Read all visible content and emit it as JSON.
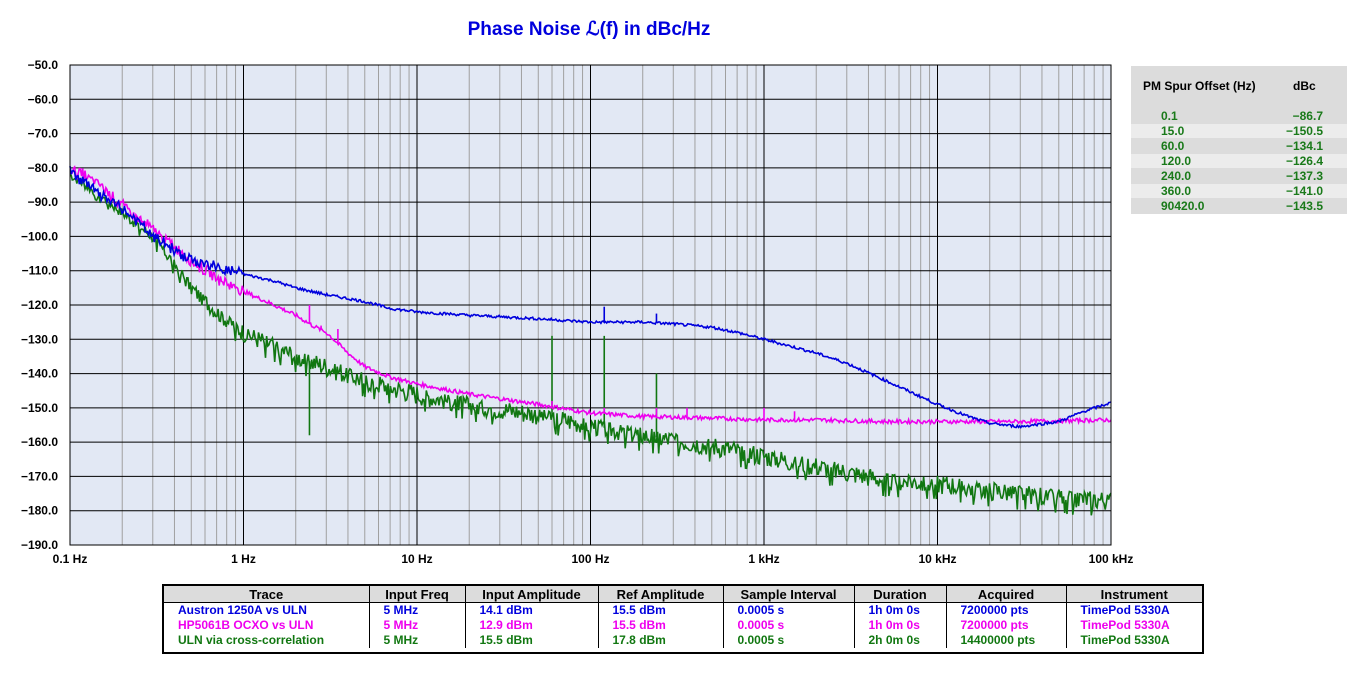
{
  "chart_data": {
    "type": "line",
    "title": "Phase Noise ℒ(f) in dBc/Hz",
    "x_scale": "log",
    "xlim": [
      0.1,
      100000
    ],
    "ylim": [
      -190,
      -50
    ],
    "grid": true,
    "x_ticks": [
      "0.1 Hz",
      "1 Hz",
      "10 Hz",
      "100 Hz",
      "1 kHz",
      "10 kHz",
      "100 kHz"
    ],
    "y_ticks": [
      "−50.0",
      "−60.0",
      "−70.0",
      "−80.0",
      "−90.0",
      "−100.0",
      "−110.0",
      "−120.0",
      "−130.0",
      "−140.0",
      "−150.0",
      "−160.0",
      "−170.0",
      "−180.0",
      "−190.0"
    ],
    "series": [
      {
        "name": "Austron 1250A vs ULN",
        "color": "#0000dd",
        "x": [
          0.1,
          0.12,
          0.15,
          0.2,
          0.25,
          0.3,
          0.4,
          0.5,
          0.7,
          1,
          1.5,
          2,
          3,
          5,
          7,
          10,
          20,
          50,
          100,
          200,
          300,
          500,
          700,
          1000,
          2000,
          3000,
          5000,
          10000,
          15000,
          20000,
          30000,
          50000,
          70000,
          100000
        ],
        "y": [
          -81,
          -84,
          -88,
          -92,
          -96,
          -100,
          -104,
          -107,
          -109,
          -111,
          -113,
          -115,
          -117,
          -119,
          -121,
          -122,
          -123,
          -124,
          -125,
          -125,
          -125.5,
          -126.5,
          -128,
          -130,
          -134,
          -137,
          -142,
          -149,
          -152.5,
          -154.5,
          -155.5,
          -154,
          -151,
          -148.5
        ],
        "spikes": [
          {
            "x": 120,
            "y": -120.5
          },
          {
            "x": 240,
            "y": -122.5
          }
        ]
      },
      {
        "name": "HP5061B OCXO vs ULN",
        "color": "#ee00ee",
        "x": [
          0.1,
          0.15,
          0.2,
          0.3,
          0.4,
          0.5,
          0.7,
          1,
          1.5,
          2,
          2.5,
          3,
          4,
          5,
          7,
          10,
          20,
          50,
          100,
          200,
          500,
          1000,
          2000,
          5000,
          10000,
          30000,
          100000
        ],
        "y": [
          -80,
          -85,
          -91,
          -98,
          -103,
          -107,
          -112,
          -116,
          -120,
          -123,
          -126,
          -128,
          -134,
          -138,
          -141,
          -143,
          -146,
          -149,
          -151.5,
          -152.5,
          -153,
          -153.5,
          -153.5,
          -154,
          -154,
          -154,
          -153.5
        ],
        "spikes": [
          {
            "x": 2.4,
            "y": -120
          },
          {
            "x": 2.8,
            "y": -126
          },
          {
            "x": 3.5,
            "y": -127
          },
          {
            "x": 60,
            "y": -148
          },
          {
            "x": 120,
            "y": -150
          },
          {
            "x": 240,
            "y": -150
          },
          {
            "x": 360,
            "y": -150
          },
          {
            "x": 1000,
            "y": -150
          },
          {
            "x": 1500,
            "y": -151
          }
        ]
      },
      {
        "name": "ULN via cross-correlation",
        "color": "#117711",
        "x": [
          0.1,
          0.15,
          0.2,
          0.3,
          0.4,
          0.5,
          0.7,
          1,
          1.5,
          2,
          3,
          5,
          7,
          10,
          20,
          50,
          100,
          200,
          500,
          1000,
          2000,
          5000,
          10000,
          20000,
          50000,
          100000
        ],
        "y": [
          -82,
          -88,
          -93,
          -100,
          -108,
          -115,
          -122,
          -128,
          -132,
          -135,
          -138,
          -142,
          -144,
          -146,
          -149,
          -152,
          -155,
          -158,
          -161,
          -164,
          -167,
          -171,
          -172,
          -174,
          -176,
          -177
        ],
        "noise": 6,
        "spikes": [
          {
            "x": 60,
            "y": -129
          },
          {
            "x": 120,
            "y": -129
          },
          {
            "x": 240,
            "y": -140
          },
          {
            "x": 2.4,
            "y": -158
          }
        ]
      }
    ]
  },
  "spur_table": {
    "headers": [
      "PM Spur Offset (Hz)",
      "dBc"
    ],
    "rows": [
      {
        "offset": "0.1",
        "dbc": "−86.7"
      },
      {
        "offset": "15.0",
        "dbc": "−150.5"
      },
      {
        "offset": "60.0",
        "dbc": "−134.1"
      },
      {
        "offset": "120.0",
        "dbc": "−126.4"
      },
      {
        "offset": "240.0",
        "dbc": "−137.3"
      },
      {
        "offset": "360.0",
        "dbc": "−141.0"
      },
      {
        "offset": "90420.0",
        "dbc": "−143.5"
      }
    ]
  },
  "legend_table": {
    "headers": [
      "Trace",
      "Input Freq",
      "Input Amplitude",
      "Ref Amplitude",
      "Sample Interval",
      "Duration",
      "Acquired",
      "Instrument"
    ],
    "rows": [
      {
        "color": "#0000dd",
        "cells": [
          "Austron 1250A vs ULN",
          "5 MHz",
          "14.1 dBm",
          "15.5 dBm",
          "0.0005 s",
          "1h 0m 0s",
          "7200000 pts",
          "TimePod 5330A"
        ]
      },
      {
        "color": "#ee00ee",
        "cells": [
          "HP5061B OCXO vs ULN",
          "5 MHz",
          "12.9 dBm",
          "15.5 dBm",
          "0.0005 s",
          "1h 0m 0s",
          "7200000 pts",
          "TimePod 5330A"
        ]
      },
      {
        "color": "#117711",
        "cells": [
          "ULN via cross-correlation",
          "5 MHz",
          "15.5 dBm",
          "17.8 dBm",
          "0.0005 s",
          "2h 0m 0s",
          "14400000 pts",
          "TimePod 5330A"
        ]
      }
    ]
  }
}
